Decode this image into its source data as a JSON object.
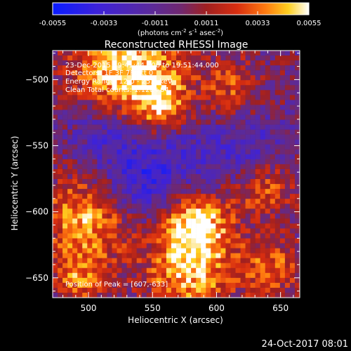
{
  "chart_data": {
    "type": "heatmap",
    "title": "Reconstructed RHESSI Image",
    "xlabel": "Heliocentric X (arcsec)",
    "ylabel": "Heliocentric Y (arcsec)",
    "xlim": [
      472,
      665
    ],
    "ylim": [
      -665,
      -478
    ],
    "x_ticks": [
      500,
      550,
      600,
      650
    ],
    "y_ticks": [
      -650,
      -600,
      -550,
      -500
    ],
    "colorbar": {
      "label_html": "(photons cm⁻² s⁻¹ asec⁻²)",
      "label_parts": [
        "(photons cm",
        "-2",
        " s",
        "-1",
        " asec",
        "-2",
        ")"
      ],
      "ticks": [
        "-0.0055",
        "-0.0033",
        "-0.0011",
        "0.0011",
        "0.0033",
        "0.0055"
      ],
      "range": [
        -0.0055,
        0.0055
      ],
      "gradient_stops": [
        [
          0.0,
          "#0a1cff"
        ],
        [
          0.18,
          "#3e22d8"
        ],
        [
          0.38,
          "#5a2a9c"
        ],
        [
          0.5,
          "#702870"
        ],
        [
          0.6,
          "#a02020"
        ],
        [
          0.72,
          "#d82e10"
        ],
        [
          0.83,
          "#ff7a10"
        ],
        [
          0.92,
          "#ffd020"
        ],
        [
          1.0,
          "#ffffff"
        ]
      ]
    },
    "annotations": {
      "time_range": "23-Dec-2015 19:41:44.000 to 19:51:44.000",
      "detectors": "Detectors: 1F 3F 7F  Att 0",
      "energy": "Energy Range: 12.0 - 25.0 keV",
      "clean": "Clean    Total counts: 1.12E+04",
      "peak": "Position of Peak = [607,-633]"
    },
    "grid": false,
    "grid_cells": [
      50,
      50
    ]
  },
  "footer": {
    "date": "24-Oct-2017 08:01"
  }
}
